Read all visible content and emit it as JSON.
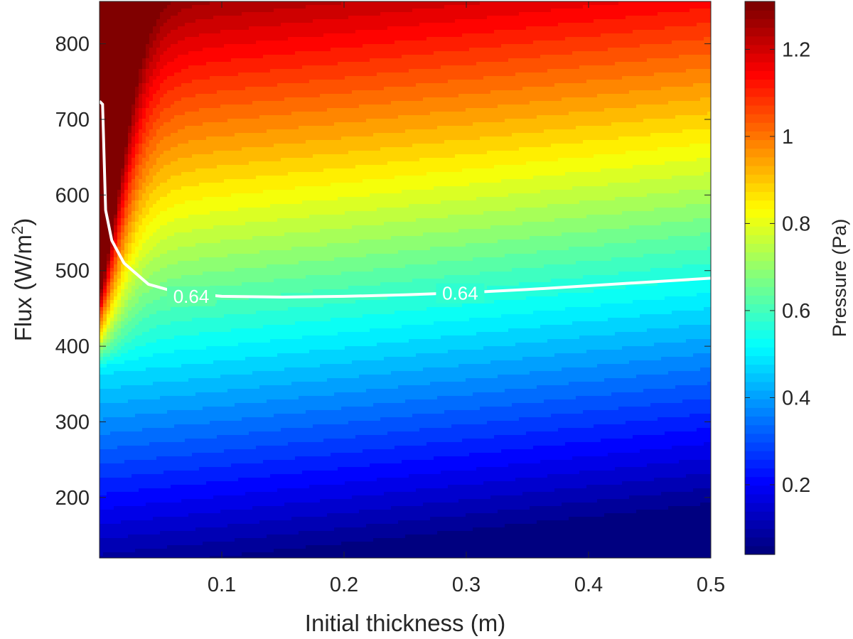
{
  "chart_data": {
    "type": "heatmap",
    "subtype": "filled-contour",
    "xlabel": "Initial thickness (m)",
    "ylabel_main": "Flux (W/m",
    "ylabel_sup": "2",
    "ylabel_close": ")",
    "colorbar_label": "Pressure (Pa)",
    "colormap": "jet",
    "xlim": [
      0.0,
      0.5
    ],
    "ylim": [
      120,
      856
    ],
    "xticks": [
      0.1,
      0.2,
      0.3,
      0.4,
      0.5
    ],
    "xtick_labels": [
      "0.1",
      "0.2",
      "0.3",
      "0.4",
      "0.5"
    ],
    "yticks": [
      200,
      300,
      400,
      500,
      600,
      700,
      800
    ],
    "ytick_labels": [
      "200",
      "300",
      "400",
      "500",
      "600",
      "700",
      "800"
    ],
    "clim": [
      0.04,
      1.31
    ],
    "colorbar_ticks": [
      0.2,
      0.4,
      0.6,
      0.8,
      1.0,
      1.2
    ],
    "colorbar_tick_labels": [
      "0.2",
      "0.4",
      "0.6",
      "0.8",
      "1",
      "1.2"
    ],
    "contour_line": {
      "level": 0.64,
      "label": "0.64",
      "color": "#ffffff",
      "points": [
        [
          0.0,
          724
        ],
        [
          0.0025,
          720
        ],
        [
          0.005,
          580
        ],
        [
          0.01,
          540
        ],
        [
          0.02,
          510
        ],
        [
          0.04,
          482
        ],
        [
          0.06,
          473
        ],
        [
          0.08,
          469
        ],
        [
          0.1,
          466
        ],
        [
          0.15,
          465
        ],
        [
          0.2,
          466
        ],
        [
          0.25,
          468
        ],
        [
          0.3,
          471
        ],
        [
          0.35,
          475
        ],
        [
          0.4,
          480
        ],
        [
          0.45,
          485
        ],
        [
          0.5,
          490
        ]
      ],
      "label_positions": [
        [
          0.075,
          466
        ],
        [
          0.295,
          470
        ]
      ]
    },
    "pressure_model": {
      "description": "approx. field: pressure rises with flux; sharp rise near zero thickness",
      "values_at_thickness_0.25": [
        [
          120,
          0.04
        ],
        [
          300,
          0.28
        ],
        [
          465,
          0.64
        ],
        [
          600,
          0.86
        ],
        [
          700,
          1.02
        ],
        [
          856,
          1.31
        ]
      ]
    },
    "grid": false,
    "legend": "none"
  }
}
